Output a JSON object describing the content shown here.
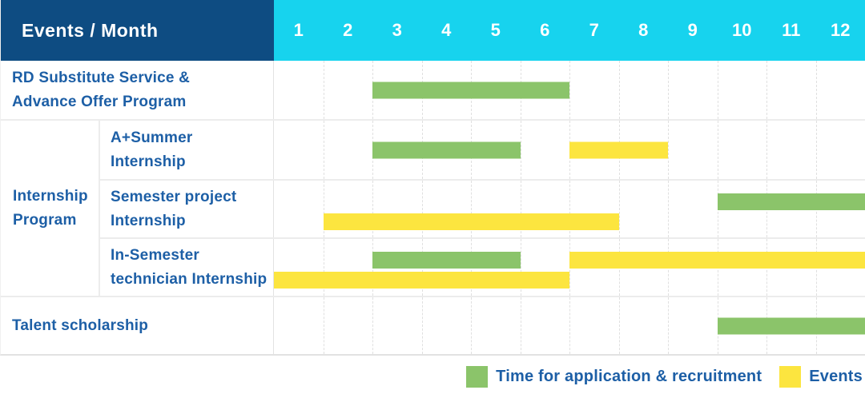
{
  "header": {
    "label": "Events / Month",
    "months": [
      "1",
      "2",
      "3",
      "4",
      "5",
      "6",
      "7",
      "8",
      "9",
      "10",
      "11",
      "12"
    ]
  },
  "colors": {
    "header_bg": "#0E4C82",
    "months_bg": "#17D3EE",
    "text_blue": "#1D5FA6",
    "recruitment": "#8BC46A",
    "event": "#FCE53F",
    "grid": "#ECECEC"
  },
  "legend": {
    "items": [
      {
        "key": "recruitment",
        "label": "Time for application & recruitment",
        "color": "#8BC46A"
      },
      {
        "key": "event",
        "label": "Events",
        "color": "#FCE53F"
      }
    ]
  },
  "chart_data": {
    "type": "bar",
    "subtype": "gantt",
    "title": "Events / Month",
    "x": {
      "label": "Month",
      "ticks": [
        1,
        2,
        3,
        4,
        5,
        6,
        7,
        8,
        9,
        10,
        11,
        12
      ],
      "range": [
        1,
        12
      ]
    },
    "grid": true,
    "legend_position": "bottom-right",
    "rows": [
      {
        "label": "RD Substitute Service &\nAdvance Offer Program",
        "group": null,
        "bars": [
          {
            "series": "Time for application & recruitment",
            "color_key": "recruitment",
            "start_month": 3,
            "end_month": 6,
            "lane": "center"
          }
        ]
      },
      {
        "label": "A+Summer\nInternship",
        "group": "Internship\nProgram",
        "bars": [
          {
            "series": "Time for application & recruitment",
            "color_key": "recruitment",
            "start_month": 3,
            "end_month": 5,
            "lane": "center"
          },
          {
            "series": "Events",
            "color_key": "event",
            "start_month": 7,
            "end_month": 8,
            "lane": "center"
          }
        ]
      },
      {
        "label": "Semester project\nInternship",
        "group": "Internship\nProgram",
        "bars": [
          {
            "series": "Time for application & recruitment",
            "color_key": "recruitment",
            "start_month": 10,
            "end_month": 12,
            "lane": "top"
          },
          {
            "series": "Events",
            "color_key": "event",
            "start_month": 2,
            "end_month": 7,
            "lane": "bottom"
          }
        ]
      },
      {
        "label": "In-Semester\ntechnician Internship",
        "group": "Internship\nProgram",
        "bars": [
          {
            "series": "Time for application & recruitment",
            "color_key": "recruitment",
            "start_month": 3,
            "end_month": 5,
            "lane": "top"
          },
          {
            "series": "Events",
            "color_key": "event",
            "start_month": 7,
            "end_month": 12,
            "lane": "top"
          },
          {
            "series": "Events",
            "color_key": "event",
            "start_month": 1,
            "end_month": 6,
            "lane": "bottom"
          }
        ]
      },
      {
        "label": "Talent scholarship",
        "group": null,
        "bars": [
          {
            "series": "Time for application & recruitment",
            "color_key": "recruitment",
            "start_month": 10,
            "end_month": 12,
            "lane": "center"
          }
        ]
      }
    ]
  }
}
